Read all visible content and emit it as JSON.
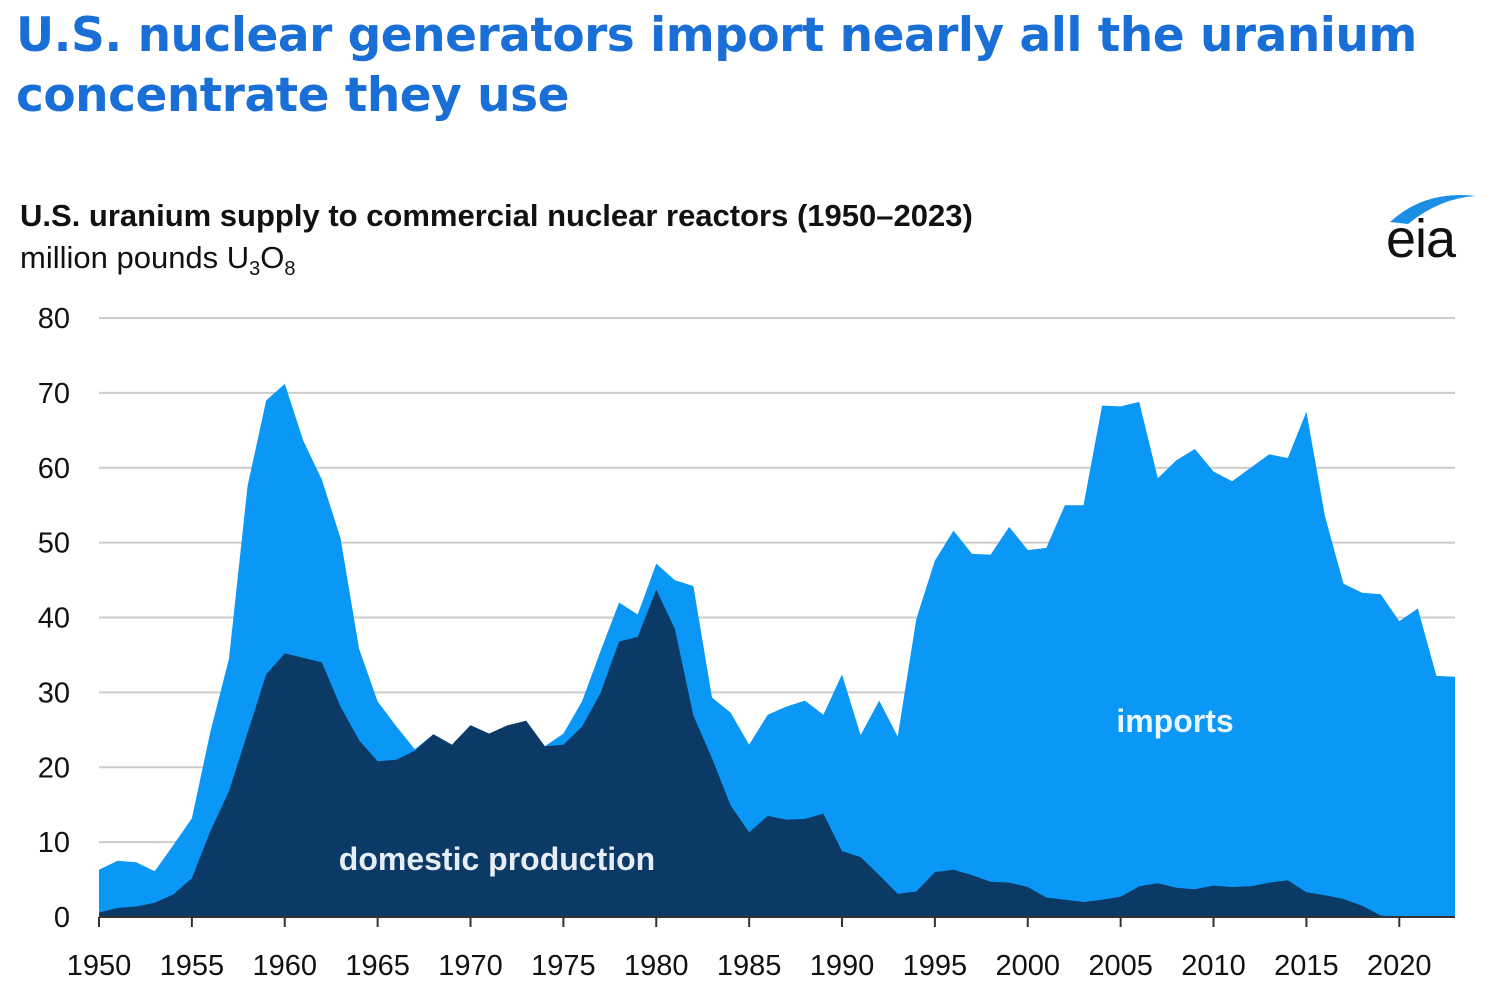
{
  "headline": "U.S. nuclear generators import nearly all the uranium concentrate they use",
  "logo": {
    "text": "eia",
    "accent_color": "#1a8fe3"
  },
  "chart_data": {
    "type": "area",
    "stacked": true,
    "title": "U.S. uranium supply to commercial nuclear reactors (1950–2023)",
    "unit": {
      "prefix": "million pounds U",
      "sub1": "3",
      "mid": "O",
      "sub2": "8"
    },
    "ylim": [
      0,
      80
    ],
    "yticks": [
      0,
      10,
      20,
      30,
      40,
      50,
      60,
      70,
      80
    ],
    "xlim": [
      1950,
      2023
    ],
    "xticks": [
      1950,
      1955,
      1960,
      1965,
      1970,
      1975,
      1980,
      1985,
      1990,
      1995,
      2000,
      2005,
      2010,
      2015,
      2020
    ],
    "grid": true,
    "legend": "inline labels",
    "colors": {
      "domestic": "#0b3a66",
      "imports": "#0a97f5",
      "grid": "#cccccc"
    },
    "labels": {
      "domestic": "domestic production",
      "imports": "imports"
    },
    "x": [
      1950,
      1951,
      1952,
      1953,
      1954,
      1955,
      1956,
      1957,
      1958,
      1959,
      1960,
      1961,
      1962,
      1963,
      1964,
      1965,
      1966,
      1967,
      1968,
      1969,
      1970,
      1971,
      1972,
      1973,
      1974,
      1975,
      1976,
      1977,
      1978,
      1979,
      1980,
      1981,
      1982,
      1983,
      1984,
      1985,
      1986,
      1987,
      1988,
      1989,
      1990,
      1991,
      1992,
      1993,
      1994,
      1995,
      1996,
      1997,
      1998,
      1999,
      2000,
      2001,
      2002,
      2003,
      2004,
      2005,
      2006,
      2007,
      2008,
      2009,
      2010,
      2011,
      2012,
      2013,
      2014,
      2015,
      2016,
      2017,
      2018,
      2019,
      2020,
      2021,
      2022,
      2023
    ],
    "domestic": [
      0.6,
      1.2,
      1.4,
      1.9,
      3.0,
      5.2,
      11.5,
      16.8,
      24.6,
      32.4,
      35.2,
      34.6,
      34.0,
      28.1,
      23.6,
      20.8,
      21.0,
      22.2,
      24.4,
      23.0,
      25.6,
      24.5,
      25.6,
      26.2,
      22.8,
      23.0,
      25.4,
      29.9,
      36.8,
      37.4,
      43.7,
      38.5,
      26.9,
      21.2,
      14.9,
      11.3,
      13.5,
      13.0,
      13.1,
      13.8,
      8.8,
      8.0,
      5.6,
      3.1,
      3.4,
      6.0,
      6.3,
      5.6,
      4.7,
      4.6,
      4.0,
      2.6,
      2.3,
      2.0,
      2.3,
      2.7,
      4.1,
      4.5,
      3.9,
      3.7,
      4.2,
      4.0,
      4.1,
      4.6,
      4.9,
      3.3,
      2.9,
      2.4,
      1.5,
      0.2,
      0.0,
      0.0,
      0.0,
      0.0
    ],
    "total": [
      6.3,
      7.5,
      7.3,
      6.1,
      9.6,
      13.2,
      24.8,
      34.5,
      57.6,
      69.0,
      71.2,
      63.6,
      58.4,
      50.6,
      35.8,
      28.8,
      25.5,
      22.4,
      24.4,
      23.0,
      25.6,
      24.5,
      25.6,
      26.2,
      22.8,
      24.5,
      28.8,
      35.5,
      42.0,
      40.4,
      47.2,
      45.0,
      44.2,
      29.3,
      27.3,
      23.0,
      27.0,
      28.1,
      28.9,
      27.0,
      32.4,
      24.3,
      28.9,
      24.1,
      39.8,
      47.6,
      51.6,
      48.5,
      48.4,
      52.1,
      49.0,
      49.3,
      55.0,
      55.0,
      68.3,
      68.2,
      68.8,
      58.6,
      61.0,
      62.5,
      59.5,
      58.2,
      60.0,
      61.8,
      61.3,
      67.5,
      53.5,
      44.5,
      43.3,
      43.1,
      39.5,
      41.2,
      32.2,
      32.1
    ]
  }
}
